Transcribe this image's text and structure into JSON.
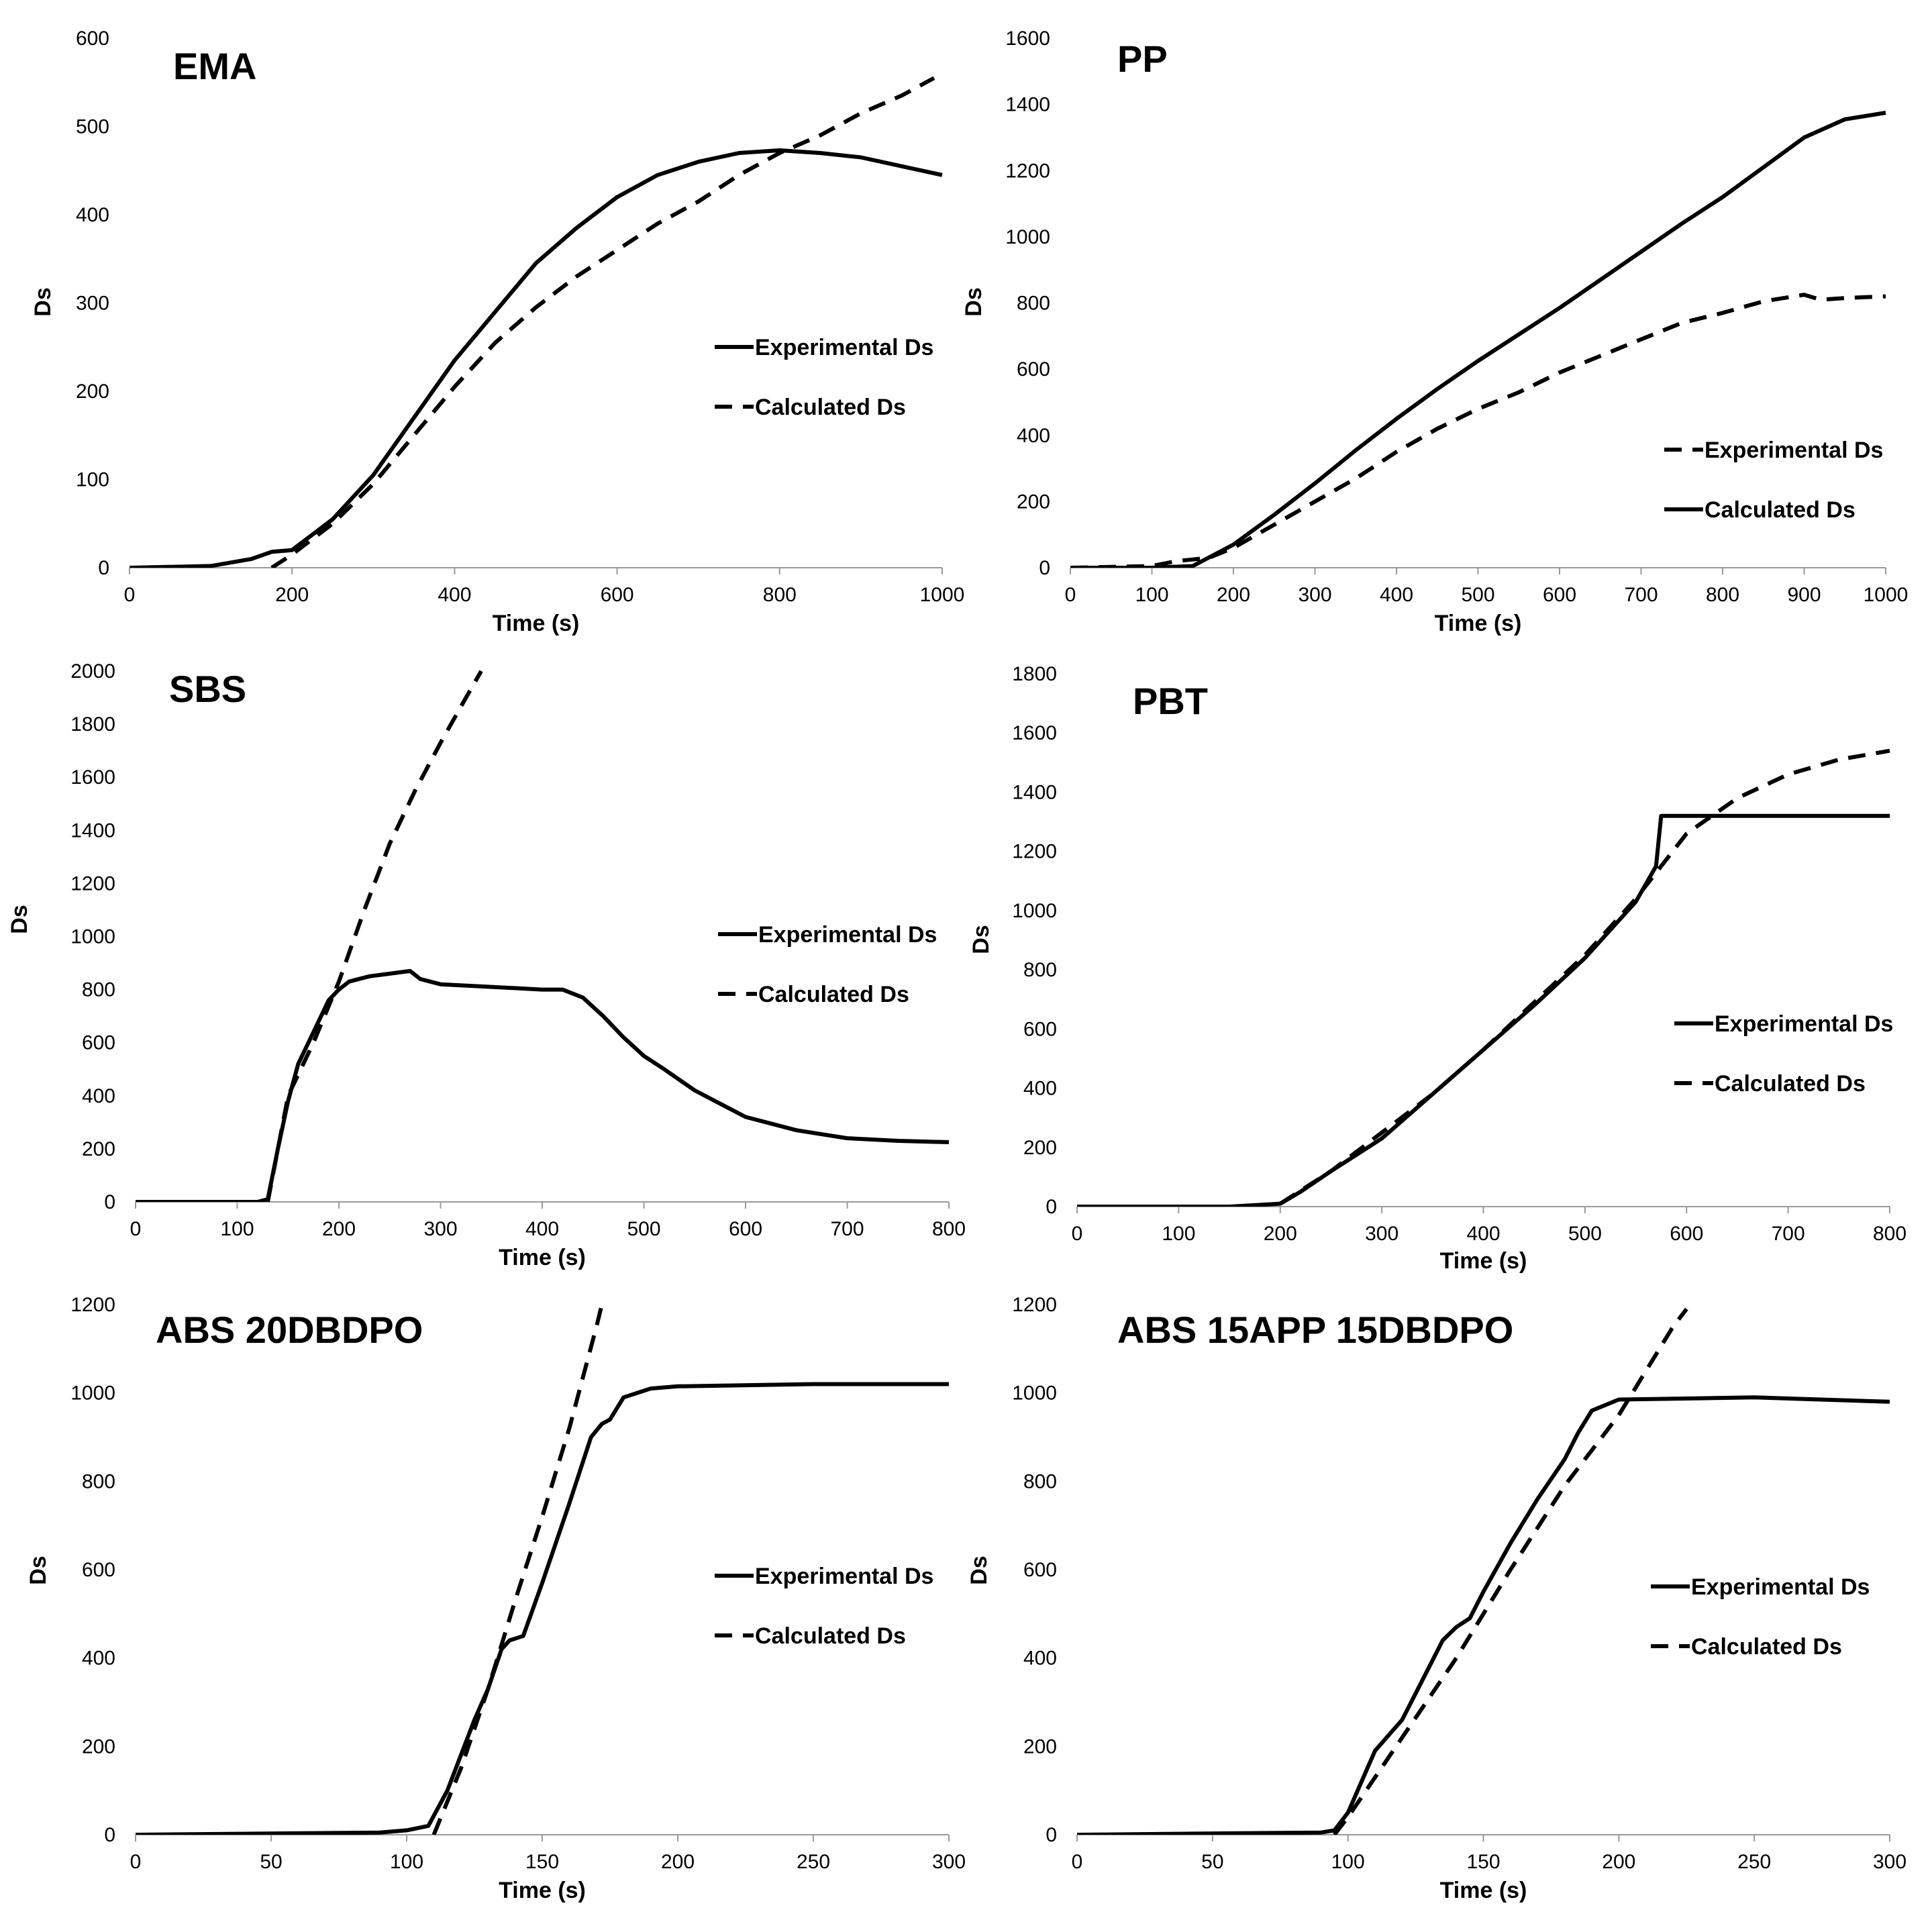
{
  "chart_data": [
    {
      "type": "line",
      "title": "EMA",
      "xlabel": "Time (s)",
      "ylabel": "Ds",
      "xlim": [
        0,
        1000
      ],
      "ylim": [
        0,
        600
      ],
      "xticks": [
        0,
        200,
        400,
        600,
        800,
        1000
      ],
      "yticks": [
        0,
        100,
        200,
        300,
        400,
        500,
        600
      ],
      "grid": false,
      "legend_position": "middle-right",
      "series": [
        {
          "name": "Experimental Ds",
          "style": "solid",
          "x": [
            0,
            100,
            150,
            175,
            200,
            250,
            300,
            350,
            400,
            450,
            500,
            550,
            600,
            650,
            700,
            750,
            800,
            850,
            900,
            950,
            1000
          ],
          "y": [
            0,
            2,
            10,
            18,
            20,
            55,
            105,
            170,
            235,
            290,
            345,
            385,
            420,
            445,
            460,
            470,
            473,
            470,
            465,
            455,
            445
          ]
        },
        {
          "name": "Calculated Ds",
          "style": "dashed",
          "x": [
            175,
            200,
            250,
            300,
            350,
            400,
            450,
            500,
            550,
            600,
            650,
            700,
            750,
            800,
            850,
            900,
            950,
            990
          ],
          "y": [
            0,
            15,
            50,
            95,
            150,
            205,
            255,
            295,
            330,
            360,
            390,
            415,
            445,
            470,
            490,
            515,
            535,
            555
          ]
        }
      ]
    },
    {
      "type": "line",
      "title": "PP",
      "xlabel": "Time (s)",
      "ylabel": "Ds",
      "xlim": [
        0,
        1000
      ],
      "ylim": [
        0,
        1600
      ],
      "xticks": [
        0,
        100,
        200,
        300,
        400,
        500,
        600,
        700,
        800,
        900,
        1000
      ],
      "yticks": [
        0,
        200,
        400,
        600,
        800,
        1000,
        1200,
        1400,
        1600
      ],
      "grid": false,
      "legend_position": "lower-right",
      "legend_styles": [
        "dashed",
        "solid"
      ],
      "series": [
        {
          "name": "Experimental Ds",
          "style": "dashed",
          "x": [
            0,
            100,
            130,
            150,
            170,
            200,
            250,
            300,
            350,
            400,
            450,
            500,
            550,
            600,
            650,
            700,
            750,
            800,
            850,
            900,
            920,
            950,
            1000
          ],
          "y": [
            0,
            5,
            20,
            25,
            30,
            60,
            130,
            200,
            270,
            350,
            420,
            480,
            530,
            590,
            640,
            690,
            740,
            770,
            805,
            825,
            810,
            815,
            820
          ]
        },
        {
          "name": "Calculated Ds",
          "style": "solid",
          "x": [
            0,
            100,
            150,
            200,
            250,
            300,
            350,
            400,
            450,
            500,
            550,
            600,
            650,
            700,
            750,
            800,
            850,
            900,
            950,
            1000
          ],
          "y": [
            0,
            0,
            5,
            70,
            160,
            255,
            355,
            450,
            540,
            625,
            705,
            785,
            870,
            955,
            1040,
            1120,
            1210,
            1300,
            1355,
            1375
          ]
        }
      ]
    },
    {
      "type": "line",
      "title": "SBS",
      "xlabel": "Time (s)",
      "ylabel": "Ds",
      "xlim": [
        0,
        800
      ],
      "ylim": [
        0,
        2000
      ],
      "xticks": [
        0,
        100,
        200,
        300,
        400,
        500,
        600,
        700,
        800
      ],
      "yticks": [
        0,
        200,
        400,
        600,
        800,
        1000,
        1200,
        1400,
        1600,
        1800,
        2000
      ],
      "grid": false,
      "legend_position": "middle-right",
      "series": [
        {
          "name": "Experimental Ds",
          "style": "solid",
          "x": [
            0,
            120,
            130,
            140,
            150,
            160,
            170,
            180,
            190,
            200,
            210,
            230,
            250,
            270,
            280,
            300,
            350,
            400,
            420,
            440,
            460,
            480,
            500,
            520,
            550,
            600,
            650,
            700,
            750,
            800
          ],
          "y": [
            0,
            0,
            10,
            200,
            380,
            520,
            600,
            680,
            760,
            800,
            830,
            850,
            860,
            870,
            840,
            820,
            810,
            800,
            800,
            770,
            700,
            620,
            550,
            500,
            420,
            320,
            270,
            240,
            230,
            225
          ]
        },
        {
          "name": "Calculated Ds",
          "style": "dashed",
          "x": [
            130,
            150,
            175,
            200,
            225,
            250,
            275,
            300,
            325,
            340
          ],
          "y": [
            0,
            400,
            600,
            830,
            1100,
            1350,
            1550,
            1730,
            1900,
            2000
          ]
        }
      ]
    },
    {
      "type": "line",
      "title": "PBT",
      "xlabel": "Time (s)",
      "ylabel": "Ds",
      "xlim": [
        0,
        800
      ],
      "ylim": [
        0,
        1800
      ],
      "xticks": [
        0,
        100,
        200,
        300,
        400,
        500,
        600,
        700,
        800
      ],
      "yticks": [
        0,
        200,
        400,
        600,
        800,
        1000,
        1200,
        1400,
        1600,
        1800
      ],
      "grid": false,
      "legend_position": "lower-right",
      "series": [
        {
          "name": "Experimental Ds",
          "style": "solid",
          "x": [
            0,
            150,
            200,
            220,
            250,
            300,
            350,
            400,
            450,
            500,
            550,
            570,
            575,
            580,
            600,
            700,
            800
          ],
          "y": [
            0,
            0,
            10,
            50,
            120,
            230,
            380,
            530,
            680,
            840,
            1030,
            1150,
            1320,
            1320,
            1320,
            1320,
            1320
          ]
        },
        {
          "name": "Calculated Ds",
          "style": "dashed",
          "x": [
            200,
            250,
            300,
            350,
            400,
            450,
            500,
            550,
            575,
            600,
            650,
            700,
            750,
            800
          ],
          "y": [
            10,
            120,
            250,
            380,
            530,
            690,
            850,
            1040,
            1150,
            1260,
            1380,
            1460,
            1510,
            1540
          ]
        }
      ]
    },
    {
      "type": "line",
      "title": "ABS 20DBDPO",
      "xlabel": "Time (s)",
      "ylabel": "Ds",
      "xlim": [
        0,
        300
      ],
      "ylim": [
        0,
        1200
      ],
      "xticks": [
        0,
        50,
        100,
        150,
        200,
        250,
        300
      ],
      "yticks": [
        0,
        200,
        400,
        600,
        800,
        1000,
        1200
      ],
      "grid": false,
      "legend_position": "middle-right",
      "series": [
        {
          "name": "Experimental Ds",
          "style": "solid",
          "x": [
            0,
            90,
            100,
            108,
            115,
            120,
            125,
            130,
            135,
            138,
            143,
            150,
            160,
            168,
            172,
            175,
            180,
            190,
            200,
            250,
            300
          ],
          "y": [
            0,
            5,
            10,
            20,
            100,
            180,
            260,
            330,
            420,
            440,
            450,
            570,
            750,
            900,
            930,
            940,
            990,
            1010,
            1015,
            1020,
            1020
          ]
        },
        {
          "name": "Calculated Ds",
          "style": "dashed",
          "x": [
            110,
            120,
            130,
            140,
            150,
            160,
            170,
            172
          ],
          "y": [
            0,
            150,
            330,
            530,
            720,
            920,
            1150,
            1200
          ]
        }
      ]
    },
    {
      "type": "line",
      "title": "ABS 15APP 15DBDPO",
      "xlabel": "Time (s)",
      "ylabel": "Ds",
      "xlim": [
        0,
        300
      ],
      "ylim": [
        0,
        1200
      ],
      "xticks": [
        0,
        50,
        100,
        150,
        200,
        250,
        300
      ],
      "yticks": [
        0,
        200,
        400,
        600,
        800,
        1000,
        1200
      ],
      "grid": false,
      "legend_position": "middle-right",
      "series": [
        {
          "name": "Experimental Ds",
          "style": "solid",
          "x": [
            0,
            90,
            95,
            100,
            110,
            120,
            130,
            135,
            140,
            145,
            150,
            160,
            170,
            180,
            185,
            190,
            200,
            250,
            300
          ],
          "y": [
            0,
            5,
            10,
            50,
            190,
            260,
            380,
            440,
            470,
            490,
            550,
            660,
            760,
            850,
            910,
            960,
            985,
            990,
            980
          ]
        },
        {
          "name": "Calculated Ds",
          "style": "dashed",
          "x": [
            95,
            100,
            120,
            140,
            160,
            180,
            200,
            210,
            220,
            225
          ],
          "y": [
            0,
            40,
            220,
            400,
            600,
            790,
            950,
            1050,
            1150,
            1190
          ]
        }
      ]
    }
  ]
}
